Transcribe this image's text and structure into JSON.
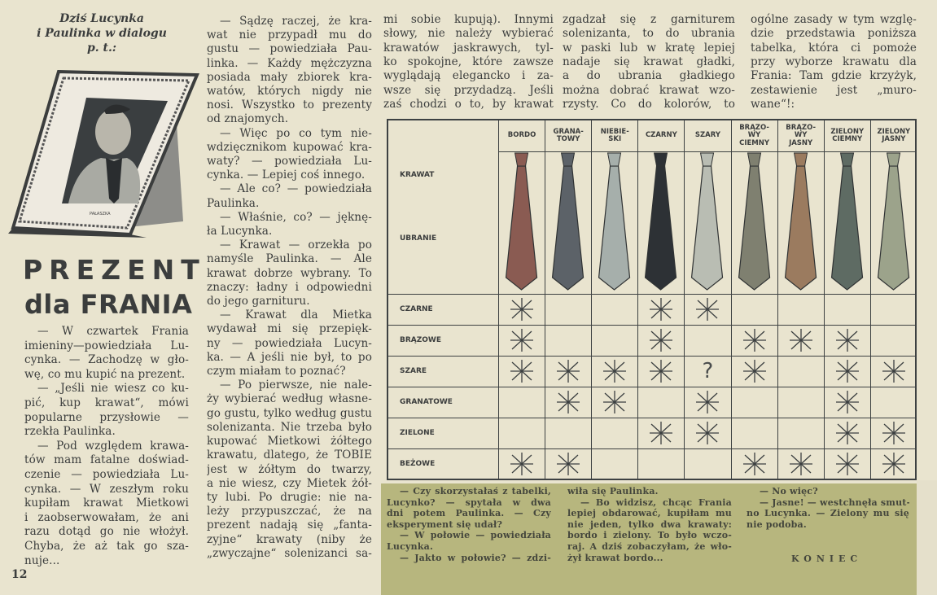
{
  "intro": [
    "Dziś Lucynka",
    "i Paulinka w dialogu",
    "p. t.:"
  ],
  "title": {
    "line1": "PREZENT",
    "line2": "dla FRANIA"
  },
  "portrait_signature": "PAŁASZKA",
  "page_number": "12",
  "columns": {
    "col1": [
      {
        "lines": [
          "— W czwartek Frania",
          "imieniny—powiedziała Lu-",
          "cynka. — Zachodzę w gło-",
          "wę, co mu kupić na prezent."
        ]
      },
      {
        "lines": [
          "— „Jeśli nie wiesz co ku-",
          "pić, kup krawat“, mówi",
          "popularne przysłowie —",
          "rzekła Paulinka."
        ]
      },
      {
        "lines": [
          "— Pod względem krawa-",
          "tów mam fatalne doświad-",
          "czenie — powiedziała Lu-",
          "cynka. — W zeszłym roku",
          "kupiłam krawat Mietkowi",
          "i zaobserwowałam, że ani",
          "razu dotąd go nie włożył.",
          "Chyba, że aż tak go sza-",
          "nuje..."
        ]
      }
    ],
    "col2": [
      {
        "lines": [
          "— Sądzę raczej, że kra-",
          "wat nie przypadł mu do",
          "gustu — powiedziała Pau-",
          "linka. — Każdy mężczyzna",
          "posiada mały zbiorek kra-",
          "watów, których nigdy nie",
          "nosi. Wszystko to prezenty",
          "od znajomych."
        ]
      },
      {
        "lines": [
          "— Więc po co tym nie-",
          "wdzięcznikom kupować kra-",
          "waty? — powiedziała Lu-",
          "cynka. — Lepiej coś innego."
        ]
      },
      {
        "lines": [
          "— Ale co? — powiedziała",
          "Paulinka."
        ]
      },
      {
        "lines": [
          "— Właśnie, co? — jęknę-",
          "ła Lucynka."
        ]
      },
      {
        "lines": [
          "— Krawat — orzekła po",
          "namyśle Paulinka. — Ale",
          "krawat dobrze wybrany. To",
          "znaczy: ładny i odpowiedni",
          "do jego garnituru."
        ]
      },
      {
        "lines": [
          "— Krawat dla Mietka",
          "wydawał mi się przepięk-",
          "ny — powiedziała Lucyn-",
          "ka. — A jeśli nie był, to po",
          "czym miałam to poznać?"
        ]
      },
      {
        "lines": [
          "— Po pierwsze, nie nale-",
          "ży wybierać według własne-",
          "go gustu, tylko według gustu",
          "solenizanta. Nie trzeba było",
          "kupować Mietkowi żółtego",
          "krawatu, dlatego, że TOBIE",
          "jest w żółtym do twarzy,",
          "a nie wiesz, czy Mietek żół-",
          "ty lubi. Po drugie: nie na-",
          "leży przypuszczać, że na",
          "prezent nadają się „fanta-",
          "zyjne“ krawaty (niby że",
          "„zwyczajne“ solenizanci sa-"
        ],
        "continues": true
      }
    ],
    "col3": [
      {
        "lines": [
          "mi sobie kupują). Innymi",
          "słowy, nie należy wybierać",
          "krawatów jaskrawych, tyl-",
          "ko spokojne, które zawsze",
          "wyglądają elegancko i za-",
          "wsze się przydadzą. Jeśli",
          "zaś chodzi o to, by krawat"
        ],
        "cont": true,
        "continues": true
      }
    ],
    "col4": [
      {
        "lines": [
          "zgadzał się z garniturem",
          "solenizanta, to do ubrania",
          "w paski lub w kratę lepiej",
          "nadaje się krawat gładki,",
          "a do ubrania gładkiego",
          "można dobrać krawat wzo-",
          "rzysty. Co do kolorów, to"
        ],
        "cont": true,
        "continues": true
      }
    ],
    "col5": [
      {
        "lines": [
          "ogólne zasady w tym wzglę-",
          "dzie przedstawia poniższa",
          "tabelka, która ci pomoże",
          "przy wyborze krawatu dla",
          "Frania: Tam gdzie krzyżyk,",
          "zestawienie jest „muro-",
          "wane“!:"
        ],
        "cont": true
      }
    ],
    "g1": [
      {
        "lines": [
          "— Czy skorzystałaś z tabelki,",
          "Lucynko? — spytała w dwa",
          "dni potem Paulinka. — Czy",
          "eksperyment się udał?"
        ]
      },
      {
        "lines": [
          "— W połowie — powiedziała",
          "Lucynka."
        ]
      },
      {
        "lines": [
          "— Jakto w połowie? — zdzi-"
        ],
        "continues": true
      }
    ],
    "g2": [
      {
        "lines": [
          "wiła się Paulinka."
        ],
        "cont": true
      },
      {
        "lines": [
          "— Bo widzisz, chcąc Frania",
          "lepiej obdarować, kupiłam mu",
          "nie jeden, tylko dwa krawaty:",
          "bordo i zielony. To było wczo-",
          "raj. A dziś zobaczyłam, że wło-",
          "żył krawat bordo..."
        ]
      }
    ],
    "g3": [
      {
        "lines": [
          "— No więc?"
        ]
      },
      {
        "lines": [
          "— Jasne! — westchnęła smut-",
          "no Lucynka. — Zielony mu się",
          "nie podoba."
        ]
      }
    ]
  },
  "ending": "KONIEC",
  "table": {
    "row_header_krawat": "KRAWAT",
    "row_header_ubranie": "UBRANIE",
    "ties": [
      {
        "label": "BORDO",
        "color": "#8a5b52"
      },
      {
        "label": "GRANA-\nTOWY",
        "color": "#5c6268"
      },
      {
        "label": "NIEBIE-\nSKI",
        "color": "#a6afab"
      },
      {
        "label": "CZARNY",
        "color": "#2d3135"
      },
      {
        "label": "SZARY",
        "color": "#b9bdb3"
      },
      {
        "label": "BRĄZO-\nWY\nCIEMNY",
        "color": "#7f8070"
      },
      {
        "label": "BRĄZO-\nWY\nJASNY",
        "color": "#9b7b5f"
      },
      {
        "label": "ZIELONY\nCIEMNY",
        "color": "#5e6b63"
      },
      {
        "label": "ZIELONY\nJASNY",
        "color": "#9ca38b"
      }
    ],
    "rows": [
      {
        "label": "CZARNE",
        "marks": [
          "x",
          "",
          "",
          "x",
          "x",
          "",
          "",
          "",
          ""
        ]
      },
      {
        "label": "BRĄZOWE",
        "marks": [
          "x",
          "",
          "",
          "x",
          "",
          "x",
          "x",
          "x",
          ""
        ]
      },
      {
        "label": "SZARE",
        "marks": [
          "x",
          "x",
          "x",
          "x",
          "?",
          "x",
          "",
          "x",
          "x"
        ]
      },
      {
        "label": "GRANATOWE",
        "marks": [
          "",
          "x",
          "x",
          "",
          "x",
          "",
          "",
          "x",
          ""
        ]
      },
      {
        "label": "ZIELONE",
        "marks": [
          "",
          "",
          "",
          "x",
          "x",
          "",
          "",
          "x",
          "x"
        ]
      },
      {
        "label": "BEŻOWE",
        "marks": [
          "x",
          "x",
          "",
          "",
          "",
          "x",
          "x",
          "x",
          "x"
        ]
      }
    ]
  },
  "colors": {
    "paper": "#e9e4cf",
    "ink": "#3b3d3d",
    "green_box": "#b7b67e"
  }
}
